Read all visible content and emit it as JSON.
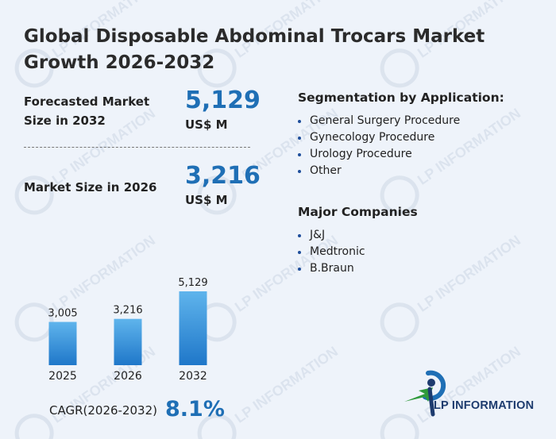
{
  "title": "Global Disposable Abdominal Trocars Market Growth 2026-2032",
  "stats": [
    {
      "label_line1": "Forecasted Market",
      "label_line2": "Size in 2032",
      "value": "5,129",
      "unit": "US$ M"
    },
    {
      "label_line1": "Market Size in 2026",
      "value": "3,216",
      "unit": "US$ M"
    }
  ],
  "segmentation": {
    "title": "Segmentation by Application:",
    "items": [
      "General Surgery Procedure",
      "Gynecology Procedure",
      "Urology Procedure",
      "Other"
    ]
  },
  "companies": {
    "title": "Major Companies",
    "items": [
      "J&J",
      "Medtronic",
      "B.Braun"
    ]
  },
  "cagr": {
    "label": "CAGR(2026-2032)",
    "value": "8.1%"
  },
  "logo": {
    "text": "LP INFORMATION"
  },
  "watermark": {
    "text": "LP INFORMATION"
  },
  "colors": {
    "accent": "#1f6fb5",
    "bar_top": "#5fb4ec",
    "bar_bottom": "#1f77c9",
    "logo_green": "#2e9a3a"
  },
  "chart_data": {
    "type": "bar",
    "categories": [
      "2025",
      "2026",
      "2032"
    ],
    "values": [
      3005,
      3216,
      5129
    ],
    "value_labels": [
      "3,005",
      "3,216",
      "5,129"
    ],
    "title": "",
    "xlabel": "",
    "ylabel": "",
    "ylim": [
      0,
      5129
    ],
    "grid": false
  }
}
